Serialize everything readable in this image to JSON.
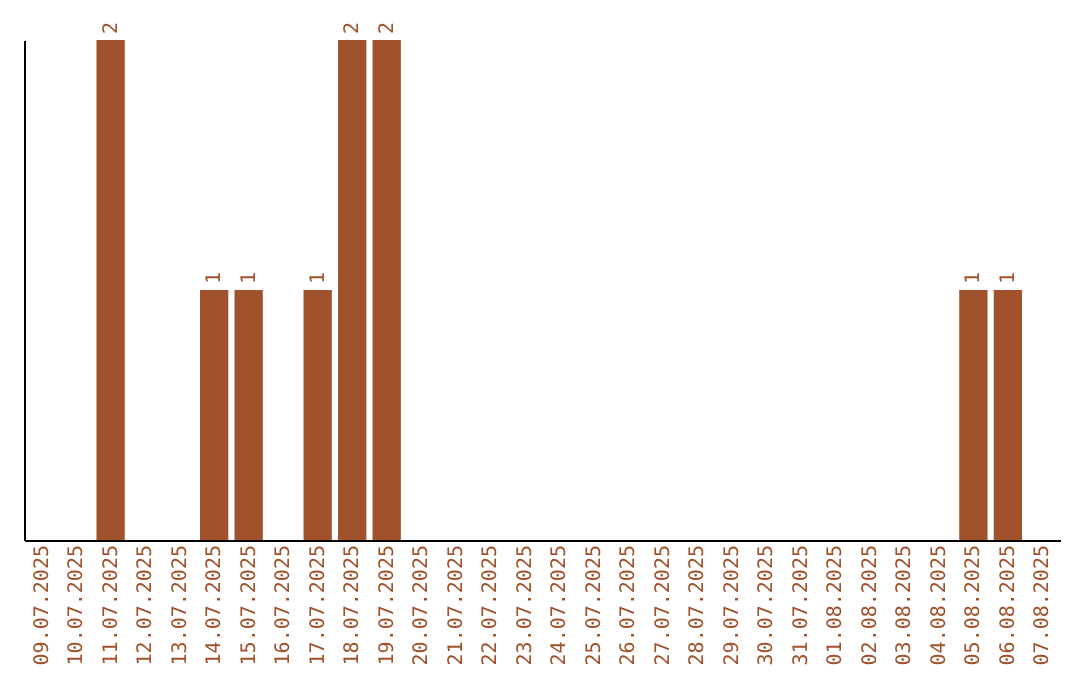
{
  "chart_data": {
    "type": "bar",
    "categories": [
      "09.07.2025",
      "10.07.2025",
      "11.07.2025",
      "12.07.2025",
      "13.07.2025",
      "14.07.2025",
      "15.07.2025",
      "16.07.2025",
      "17.07.2025",
      "18.07.2025",
      "19.07.2025",
      "20.07.2025",
      "21.07.2025",
      "22.07.2025",
      "23.07.2025",
      "24.07.2025",
      "25.07.2025",
      "26.07.2025",
      "27.07.2025",
      "28.07.2025",
      "29.07.2025",
      "30.07.2025",
      "31.07.2025",
      "01.08.2025",
      "02.08.2025",
      "03.08.2025",
      "04.08.2025",
      "05.08.2025",
      "06.08.2025",
      "07.08.2025"
    ],
    "values": [
      0,
      0,
      2,
      0,
      0,
      1,
      1,
      0,
      1,
      2,
      2,
      0,
      0,
      0,
      0,
      0,
      0,
      0,
      0,
      0,
      0,
      0,
      0,
      0,
      0,
      0,
      0,
      1,
      1,
      0
    ],
    "value_labels": [
      null,
      null,
      "2",
      null,
      null,
      "1",
      "1",
      null,
      "1",
      "2",
      "2",
      null,
      null,
      null,
      null,
      null,
      null,
      null,
      null,
      null,
      null,
      null,
      null,
      null,
      null,
      null,
      null,
      "1",
      "1",
      null
    ],
    "color": "#a0522d",
    "ylim": [
      0,
      2
    ],
    "tick_labels": "x"
  }
}
